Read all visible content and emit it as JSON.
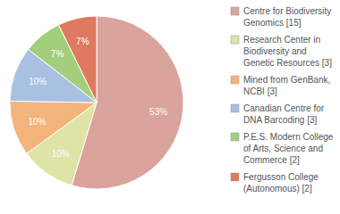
{
  "chart_data": {
    "type": "pie",
    "categories": [
      "Centre for Biodiversity Genomics [15]",
      "Research Center in Biodiversity and Genetic Resources [3]",
      "Mined from GenBank, NCBI [3]",
      "Canadian Centre for DNA Barcoding [3]",
      "P.E.S. Modern College of Arts, Science and Commerce [2]",
      "Fergusson College (Autonomous) [2]"
    ],
    "values": [
      53,
      10,
      10,
      10,
      7,
      7
    ],
    "value_labels": [
      "53%",
      "10%",
      "10%",
      "10%",
      "7%",
      "7%"
    ],
    "colors": [
      "#daa39c",
      "#dfe3a6",
      "#f2b47b",
      "#a8c0e2",
      "#a3cf7d",
      "#df7a60"
    ],
    "data_labels": true,
    "legend": "top-right"
  }
}
